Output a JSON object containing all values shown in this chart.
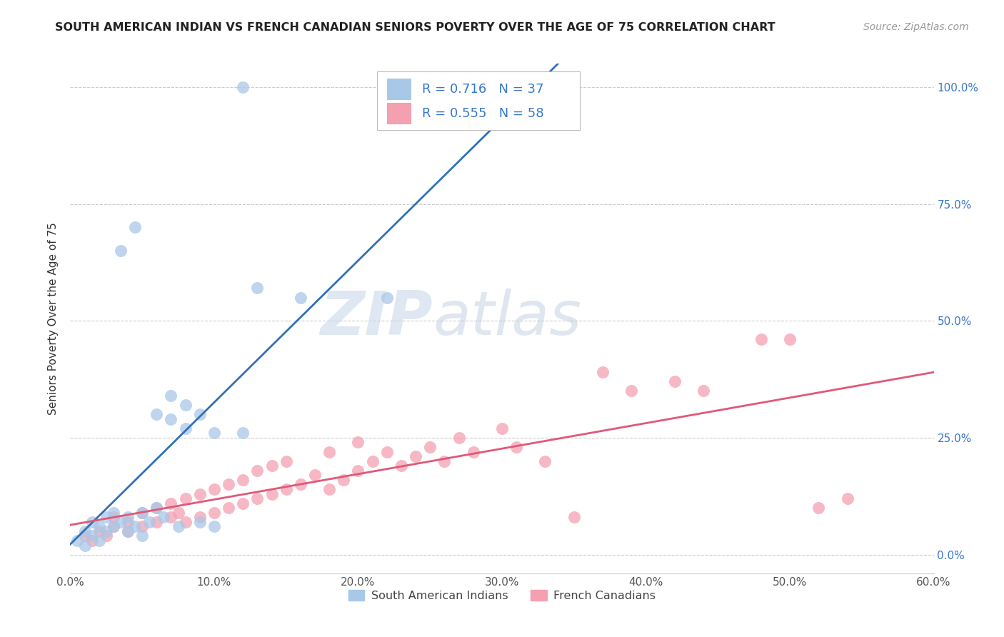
{
  "title": "SOUTH AMERICAN INDIAN VS FRENCH CANADIAN SENIORS POVERTY OVER THE AGE OF 75 CORRELATION CHART",
  "source": "Source: ZipAtlas.com",
  "ylabel": "Seniors Poverty Over the Age of 75",
  "xlim": [
    0.0,
    0.6
  ],
  "ylim": [
    -0.04,
    1.05
  ],
  "xtick_labels": [
    "0.0%",
    "10.0%",
    "20.0%",
    "30.0%",
    "40.0%",
    "50.0%",
    "60.0%"
  ],
  "xtick_vals": [
    0.0,
    0.1,
    0.2,
    0.3,
    0.4,
    0.5,
    0.6
  ],
  "ytick_labels": [
    "0.0%",
    "25.0%",
    "50.0%",
    "75.0%",
    "100.0%"
  ],
  "ytick_vals": [
    0.0,
    0.25,
    0.5,
    0.75,
    1.0
  ],
  "blue_color": "#A8C8E8",
  "pink_color": "#F4A0B0",
  "blue_line_color": "#3070B8",
  "pink_line_color": "#E05878",
  "right_tick_color": "#3878C8",
  "legend_R_blue": "0.716",
  "legend_N_blue": "37",
  "legend_R_pink": "0.555",
  "legend_N_pink": "58",
  "legend_label_blue": "South American Indians",
  "legend_label_pink": "French Canadians",
  "watermark_zip": "ZIP",
  "watermark_atlas": "atlas",
  "blue_scatter_x": [
    0.005,
    0.01,
    0.01,
    0.015,
    0.015,
    0.02,
    0.02,
    0.025,
    0.025,
    0.03,
    0.03,
    0.035,
    0.04,
    0.04,
    0.045,
    0.05,
    0.05,
    0.055,
    0.06,
    0.06,
    0.065,
    0.07,
    0.07,
    0.075,
    0.08,
    0.08,
    0.09,
    0.09,
    0.1,
    0.1,
    0.12,
    0.13,
    0.16,
    0.22,
    0.035,
    0.045,
    0.12
  ],
  "blue_scatter_y": [
    0.03,
    0.02,
    0.05,
    0.04,
    0.07,
    0.03,
    0.06,
    0.05,
    0.08,
    0.06,
    0.09,
    0.07,
    0.05,
    0.08,
    0.06,
    0.04,
    0.09,
    0.07,
    0.1,
    0.3,
    0.08,
    0.29,
    0.34,
    0.06,
    0.27,
    0.32,
    0.07,
    0.3,
    0.06,
    0.26,
    0.26,
    0.57,
    0.55,
    0.55,
    0.65,
    0.7,
    1.0
  ],
  "pink_scatter_x": [
    0.01,
    0.015,
    0.02,
    0.025,
    0.03,
    0.03,
    0.04,
    0.04,
    0.05,
    0.05,
    0.06,
    0.06,
    0.07,
    0.07,
    0.075,
    0.08,
    0.08,
    0.09,
    0.09,
    0.1,
    0.1,
    0.11,
    0.11,
    0.12,
    0.12,
    0.13,
    0.13,
    0.14,
    0.14,
    0.15,
    0.15,
    0.16,
    0.17,
    0.18,
    0.18,
    0.19,
    0.2,
    0.2,
    0.21,
    0.22,
    0.23,
    0.24,
    0.25,
    0.26,
    0.27,
    0.28,
    0.3,
    0.31,
    0.33,
    0.35,
    0.37,
    0.39,
    0.42,
    0.44,
    0.48,
    0.5,
    0.52,
    0.54
  ],
  "pink_scatter_y": [
    0.04,
    0.03,
    0.05,
    0.04,
    0.06,
    0.08,
    0.05,
    0.07,
    0.06,
    0.09,
    0.07,
    0.1,
    0.08,
    0.11,
    0.09,
    0.07,
    0.12,
    0.08,
    0.13,
    0.09,
    0.14,
    0.1,
    0.15,
    0.11,
    0.16,
    0.12,
    0.18,
    0.13,
    0.19,
    0.14,
    0.2,
    0.15,
    0.17,
    0.14,
    0.22,
    0.16,
    0.18,
    0.24,
    0.2,
    0.22,
    0.19,
    0.21,
    0.23,
    0.2,
    0.25,
    0.22,
    0.27,
    0.23,
    0.2,
    0.08,
    0.39,
    0.35,
    0.37,
    0.35,
    0.46,
    0.46,
    0.1,
    0.12
  ]
}
